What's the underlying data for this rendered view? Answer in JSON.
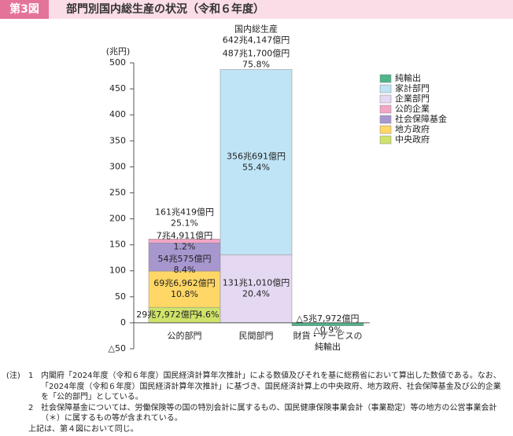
{
  "header": {
    "badge": "第3図",
    "title": "部門別国内総生産の状況（令和６年度）"
  },
  "chart_data": {
    "type": "stacked-bar",
    "y_label": "(兆円)",
    "categories": [
      "公的部門",
      "民間部門",
      "財貨・サービスの純輸出"
    ],
    "ylim": [
      -50,
      500
    ],
    "yticks": [
      {
        "value": -50,
        "label": "△50"
      },
      0,
      50,
      100,
      150,
      200,
      250,
      300,
      350,
      400,
      450,
      500
    ],
    "series": [
      {
        "name": "純輸出",
        "color": "#4fb58a",
        "values": [
          null,
          null,
          -5.7972
        ],
        "value_labels": [
          null,
          null,
          "△5兆7,972億円"
        ],
        "shares": [
          null,
          null,
          -0.9
        ],
        "share_labels": [
          null,
          null,
          "△0.9%"
        ]
      },
      {
        "name": "家計部門",
        "color": "#bfe4f6",
        "values": [
          null,
          356.0691,
          null
        ],
        "value_labels": [
          null,
          "356兆691億円",
          null
        ],
        "shares": [
          null,
          55.4,
          null
        ],
        "share_labels": [
          null,
          "55.4%",
          null
        ]
      },
      {
        "name": "企業部門",
        "color": "#e5d8f2",
        "values": [
          null,
          131.101,
          null
        ],
        "value_labels": [
          null,
          "131兆1,010億円",
          null
        ],
        "shares": [
          null,
          20.4,
          null
        ],
        "share_labels": [
          null,
          "20.4%",
          null
        ]
      },
      {
        "name": "公的企業",
        "color": "#f2a5c5",
        "values": [
          7.4911,
          null,
          null
        ],
        "value_labels": [
          "7兆4,911億円",
          null,
          null
        ],
        "shares": [
          1.2,
          null,
          null
        ],
        "share_labels": [
          "1.2%",
          null,
          null
        ]
      },
      {
        "name": "社会保障基金",
        "color": "#a897cf",
        "values": [
          54.0575,
          null,
          null
        ],
        "value_labels": [
          "54兆575億円",
          null,
          null
        ],
        "shares": [
          8.4,
          null,
          null
        ],
        "share_labels": [
          "8.4%",
          null,
          null
        ]
      },
      {
        "name": "地方政府",
        "color": "#ffd766",
        "values": [
          69.6962,
          null,
          null
        ],
        "value_labels": [
          "69兆6,962億円",
          null,
          null
        ],
        "shares": [
          10.8,
          null,
          null
        ],
        "share_labels": [
          "10.8%",
          null,
          null
        ]
      },
      {
        "name": "中央政府",
        "color": "#cfe36a",
        "values": [
          29.7972,
          null,
          null
        ],
        "value_labels": [
          "29兆7,972億円",
          null,
          null
        ],
        "shares": [
          4.6,
          null,
          null
        ],
        "share_labels": [
          "4.6%",
          null,
          null
        ]
      }
    ],
    "totals": {
      "values": [
        161.0419,
        487.17,
        null
      ],
      "value_labels": [
        "161兆419億円",
        "487兆1,700億円",
        null
      ],
      "shares": [
        25.1,
        75.8,
        null
      ],
      "share_labels": [
        "25.1%",
        "75.8%",
        null
      ]
    },
    "gdp": {
      "label": "国内総生産",
      "value": 642.4147,
      "value_label": "642兆4,147億円"
    }
  },
  "notes": {
    "prefix": "(注)",
    "items": [
      {
        "number": "1",
        "text": "内閣府「2024年度（令和６年度）国民経済計算年次推計」による数値及びそれを基に総務省において算出した数値である。なお、「2024年度（令和６年度）国民経済計算年次推計」に基づき、国民経済計算上の中央政府、地方政府、社会保障基金及び公的企業を「公的部門」としている。"
      },
      {
        "number": "2",
        "text": "社会保障基金については、労働保険等の国の特別会計に属するもの、国民健康保険事業会計（事業勘定）等の地方の公営事業会計（＊）に属するもの等が含まれている。"
      }
    ],
    "footer": "上記は、第４図において同じ。"
  }
}
